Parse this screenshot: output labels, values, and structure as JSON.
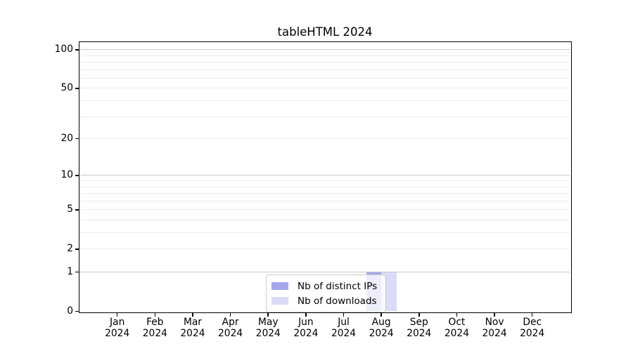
{
  "title": "tableHTML 2024",
  "chart_data": {
    "type": "bar",
    "title": "tableHTML 2024",
    "categories": [
      "Jan",
      "Feb",
      "Mar",
      "Apr",
      "May",
      "Jun",
      "Jul",
      "Aug",
      "Sep",
      "Oct",
      "Nov",
      "Dec"
    ],
    "year_label": "2024",
    "series": [
      {
        "name": "Nb of distinct IPs",
        "color": "#a6a6ec",
        "values": [
          0,
          0,
          0,
          0,
          0,
          0,
          0,
          1,
          0,
          0,
          0,
          0
        ]
      },
      {
        "name": "Nb of downloads",
        "color": "#dbdbf8",
        "values": [
          0,
          0,
          0,
          0,
          0,
          0,
          0,
          1,
          0,
          0,
          0,
          0
        ]
      }
    ],
    "y_scale": "log1p",
    "y_ticks": [
      100,
      50,
      20,
      10,
      5,
      2,
      1,
      0
    ],
    "y_max": 100,
    "gridlines_major": [
      1,
      10,
      100
    ],
    "gridlines_minor": [
      2,
      3,
      4,
      5,
      6,
      7,
      8,
      9,
      20,
      30,
      40,
      50,
      60,
      70,
      80,
      90
    ],
    "legend_position": "lower center",
    "grid_on": true
  },
  "colors": {
    "major_grid": "#c8c8c8",
    "minor_grid": "#ebebeb",
    "axis": "#000000",
    "legend_border": "#cccccc",
    "background": "#ffffff"
  }
}
